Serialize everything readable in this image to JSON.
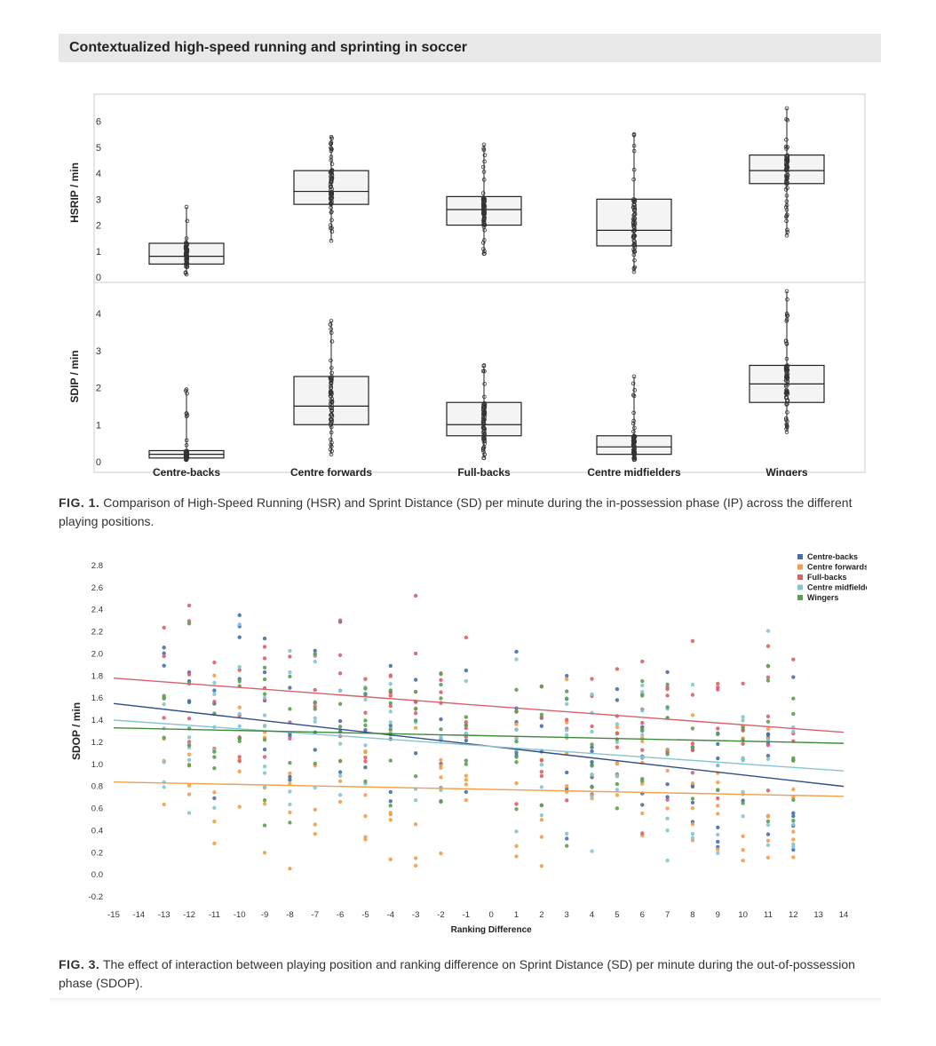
{
  "header": {
    "title": "Contextualized high-speed running and sprinting in soccer"
  },
  "fig1": {
    "caption_label": "FIG. 1.",
    "caption_text": "Comparison of High-Speed Running (HSR) and Sprint Distance (SD) per minute during the in-possession phase (IP) across the different playing positions."
  },
  "fig3": {
    "caption_label": "FIG. 3.",
    "caption_text": "The effect of interaction between playing position and ranking difference on Sprint Distance (SD) per minute during the out-of-possession phase (SDOP)."
  },
  "chart_data": [
    {
      "type": "box",
      "categories": [
        "Centre-backs",
        "Centre forwards",
        "Full-backs",
        "Centre midfielders",
        "Wingers"
      ],
      "ylabel": "HSRIP / min",
      "ylim": [
        0,
        6.5
      ],
      "yticks": [
        0,
        1,
        2,
        3,
        4,
        5,
        6
      ],
      "boxes": [
        {
          "q1": 0.5,
          "median": 0.8,
          "q3": 1.3,
          "min": 0.1,
          "max": 2.7
        },
        {
          "q1": 2.8,
          "median": 3.3,
          "q3": 4.1,
          "min": 1.4,
          "max": 5.4
        },
        {
          "q1": 2.0,
          "median": 2.6,
          "q3": 3.1,
          "min": 0.9,
          "max": 5.1
        },
        {
          "q1": 1.2,
          "median": 1.8,
          "q3": 3.0,
          "min": 0.2,
          "max": 5.5
        },
        {
          "q1": 3.6,
          "median": 4.1,
          "q3": 4.7,
          "min": 1.6,
          "max": 6.5
        }
      ]
    },
    {
      "type": "box",
      "categories": [
        "Centre-backs",
        "Centre forwards",
        "Full-backs",
        "Centre midfielders",
        "Wingers"
      ],
      "ylabel": "SDIP / min",
      "ylim": [
        0,
        4.6
      ],
      "yticks": [
        0,
        1,
        2,
        3,
        4
      ],
      "boxes": [
        {
          "q1": 0.1,
          "median": 0.2,
          "q3": 0.3,
          "min": 0.05,
          "max": 1.95
        },
        {
          "q1": 1.0,
          "median": 1.5,
          "q3": 2.3,
          "min": 0.2,
          "max": 3.8
        },
        {
          "q1": 0.7,
          "median": 1.0,
          "q3": 1.6,
          "min": 0.1,
          "max": 2.6
        },
        {
          "q1": 0.2,
          "median": 0.4,
          "q3": 0.7,
          "min": 0.05,
          "max": 2.3
        },
        {
          "q1": 1.6,
          "median": 2.1,
          "q3": 2.6,
          "min": 0.8,
          "max": 4.6
        }
      ]
    },
    {
      "type": "scatter",
      "xlabel": "Ranking Difference",
      "ylabel": "SDOP / min",
      "xlim": [
        -15,
        14
      ],
      "ylim": [
        -0.2,
        3.0
      ],
      "xticks": [
        -15,
        -14,
        -13,
        -12,
        -11,
        -10,
        -9,
        -8,
        -7,
        -6,
        -5,
        -4,
        -3,
        -2,
        -1,
        0,
        1,
        2,
        3,
        4,
        5,
        6,
        7,
        8,
        9,
        10,
        11,
        12,
        13,
        14
      ],
      "yticks": [
        -0.2,
        0.0,
        0.2,
        0.4,
        0.6,
        0.8,
        1.0,
        1.2,
        1.4,
        1.6,
        1.8,
        2.0,
        2.2,
        2.4,
        2.6,
        2.8
      ],
      "legend_position": "top-right",
      "series": [
        {
          "name": "Centre-backs",
          "color": "#4a6fa8",
          "line_color": "#2e4f86",
          "trend": [
            [
              -15,
              1.55
            ],
            [
              14,
              0.8
            ]
          ]
        },
        {
          "name": "Centre forwards",
          "color": "#f0a04b",
          "line_color": "#f0a04b",
          "trend": [
            [
              -15,
              0.84
            ],
            [
              14,
              0.71
            ]
          ]
        },
        {
          "name": "Full-backs",
          "color": "#d9606b",
          "line_color": "#d9606b",
          "trend": [
            [
              -15,
              1.78
            ],
            [
              14,
              1.29
            ]
          ]
        },
        {
          "name": "Centre midfielders",
          "color": "#86c5cf",
          "line_color": "#86c5cf",
          "trend": [
            [
              -15,
              1.4
            ],
            [
              14,
              0.94
            ]
          ]
        },
        {
          "name": "Wingers",
          "color": "#5e9e53",
          "line_color": "#3f8a3a",
          "trend": [
            [
              -15,
              1.33
            ],
            [
              14,
              1.19
            ]
          ]
        }
      ],
      "x_values_observed": [
        -13,
        -12,
        -11,
        -10,
        -9,
        -8,
        -7,
        -6,
        -5,
        -4,
        -3,
        -2,
        -1,
        1,
        2,
        3,
        4,
        5,
        6,
        7,
        8,
        9,
        10,
        11,
        12
      ]
    }
  ]
}
